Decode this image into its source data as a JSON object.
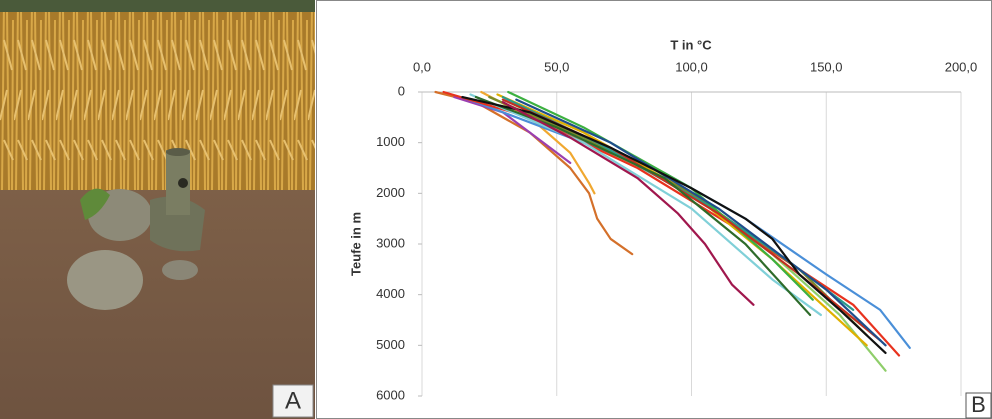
{
  "panel_labels": [
    "A",
    "B"
  ],
  "chart_data": {
    "type": "line",
    "x_label": "T in °C",
    "y_label": "Teufe in m",
    "xlim": [
      0,
      200
    ],
    "xticks": [
      {
        "value": 0,
        "label": "0,0"
      },
      {
        "value": 50,
        "label": "50,0"
      },
      {
        "value": 100,
        "label": "100,0"
      },
      {
        "value": 150,
        "label": "150,0"
      },
      {
        "value": 200,
        "label": "200,0"
      }
    ],
    "ylim": [
      0,
      6000
    ],
    "yticks": [
      0,
      1000,
      2000,
      3000,
      4000,
      5000,
      6000
    ],
    "y_inverted": true,
    "grid": true,
    "series": [
      {
        "color": "#d4702a",
        "x": [
          5,
          20,
          40,
          55,
          62,
          65,
          70,
          78
        ],
        "values": [
          0,
          200,
          800,
          1500,
          2000,
          2500,
          2900,
          3200
        ]
      },
      {
        "color": "#f0a830",
        "x": [
          22,
          40,
          55,
          62,
          64
        ],
        "values": [
          0,
          500,
          1200,
          1800,
          2000
        ]
      },
      {
        "color": "#9b3fb0",
        "x": [
          12,
          30,
          45,
          55
        ],
        "values": [
          100,
          400,
          1000,
          1400
        ]
      },
      {
        "color": "#4a8fd8",
        "x": [
          15,
          50,
          90,
          120,
          150,
          170,
          181
        ],
        "values": [
          100,
          800,
          1600,
          2500,
          3600,
          4300,
          5050
        ]
      },
      {
        "color": "#e8321e",
        "x": [
          8,
          40,
          80,
          120,
          160,
          177
        ],
        "values": [
          0,
          500,
          1500,
          2800,
          4200,
          5200
        ]
      },
      {
        "color": "#8fce6a",
        "x": [
          25,
          60,
          100,
          130,
          155,
          172
        ],
        "values": [
          100,
          900,
          2000,
          3200,
          4400,
          5500
        ]
      },
      {
        "color": "#80d0d8",
        "x": [
          18,
          60,
          100,
          130,
          148
        ],
        "values": [
          50,
          1000,
          2300,
          3700,
          4400
        ]
      },
      {
        "color": "#e0b000",
        "x": [
          28,
          60,
          100,
          130,
          165
        ],
        "values": [
          50,
          800,
          2000,
          3300,
          5000
        ]
      },
      {
        "color": "#7a8a2a",
        "x": [
          25,
          60,
          100,
          140,
          165
        ],
        "values": [
          100,
          900,
          2000,
          3500,
          4800
        ]
      },
      {
        "color": "#2a9a8a",
        "x": [
          30,
          65,
          105,
          135,
          160
        ],
        "values": [
          100,
          1000,
          2200,
          3300,
          4300
        ]
      },
      {
        "color": "#3cb040",
        "x": [
          32,
          60,
          100,
          130,
          145
        ],
        "values": [
          0,
          700,
          1900,
          3300,
          4100
        ]
      },
      {
        "color": "#c03020",
        "x": [
          30,
          70,
          110,
          140,
          170
        ],
        "values": [
          150,
          1100,
          2400,
          3600,
          4900
        ]
      },
      {
        "color": "#1f4e8c",
        "x": [
          35,
          70,
          110,
          150,
          172
        ],
        "values": [
          150,
          1000,
          2300,
          3900,
          5000
        ]
      },
      {
        "color": "#2e6b2a",
        "x": [
          20,
          50,
          90,
          120,
          144
        ],
        "values": [
          100,
          700,
          1700,
          3000,
          4400
        ]
      },
      {
        "color": "#111111",
        "x": [
          15,
          40,
          70,
          100,
          120,
          130,
          140,
          155,
          172
        ],
        "values": [
          100,
          400,
          1100,
          1900,
          2500,
          2900,
          3600,
          4300,
          5150
        ]
      },
      {
        "color": "#a0174d",
        "x": [
          30,
          55,
          80,
          95,
          105,
          115,
          123
        ],
        "values": [
          200,
          900,
          1700,
          2400,
          3000,
          3800,
          4200
        ]
      }
    ]
  }
}
